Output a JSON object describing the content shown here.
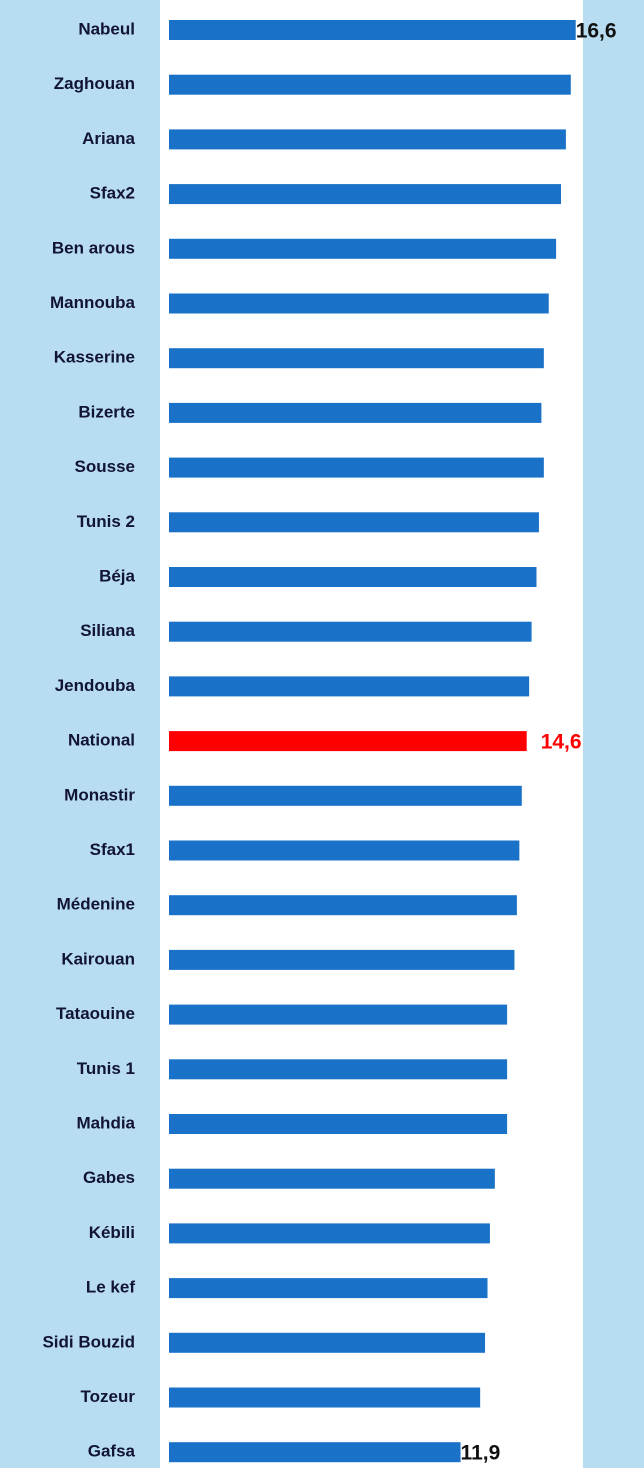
{
  "chart_data": {
    "type": "hbar",
    "categories": [
      "Nabeul",
      "Zaghouan",
      "Ariana",
      "Sfax2",
      "Ben arous",
      "Mannouba",
      "Kasserine",
      "Bizerte",
      "Sousse",
      "Tunis 2",
      "Béja",
      "Siliana",
      "Jendouba",
      "National",
      "Monastir",
      "Sfax1",
      "Médenine",
      "Kairouan",
      "Tataouine",
      "Tunis 1",
      "Mahdia",
      "Gabes",
      "Kébili",
      "Le kef",
      "Sidi Bouzid",
      "Tozeur",
      "Gafsa"
    ],
    "values": [
      16.6,
      16.4,
      16.2,
      16.0,
      15.8,
      15.5,
      15.3,
      15.2,
      15.3,
      15.1,
      15.0,
      14.8,
      14.7,
      14.6,
      14.4,
      14.3,
      14.2,
      14.1,
      13.8,
      13.8,
      13.8,
      13.3,
      13.1,
      13.0,
      12.9,
      12.7,
      11.9
    ],
    "value_labels": [
      "16,6",
      null,
      null,
      null,
      null,
      null,
      null,
      null,
      null,
      null,
      null,
      null,
      null,
      "14,6",
      null,
      null,
      null,
      null,
      null,
      null,
      null,
      null,
      null,
      null,
      null,
      null,
      "11,9"
    ],
    "colors": [
      "#1a72c8",
      "#1a72c8",
      "#1a72c8",
      "#1a72c8",
      "#1a72c8",
      "#1a72c8",
      "#1a72c8",
      "#1a72c8",
      "#1a72c8",
      "#1a72c8",
      "#1a72c8",
      "#1a72c8",
      "#1a72c8",
      "#ff0000",
      "#1a72c8",
      "#1a72c8",
      "#1a72c8",
      "#1a72c8",
      "#1a72c8",
      "#1a72c8",
      "#1a72c8",
      "#1a72c8",
      "#1a72c8",
      "#1a72c8",
      "#1a72c8",
      "#1a72c8",
      "#1a72c8"
    ],
    "xlim": [
      0,
      19
    ]
  }
}
